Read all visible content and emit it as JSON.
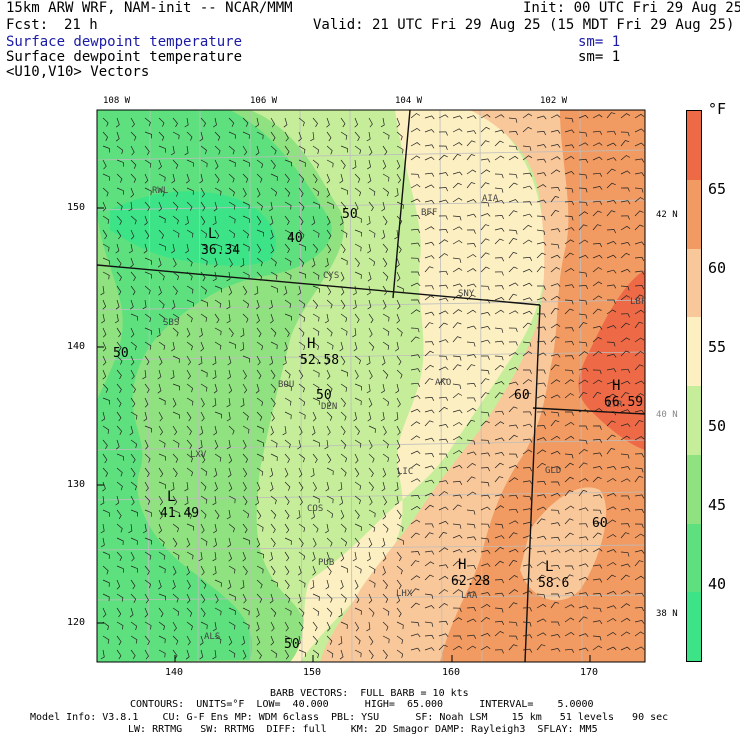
{
  "header": {
    "model": "15km ARW WRF, NAM-init -- NCAR/MMM",
    "init": "Init: 00 UTC Fri 29 Aug 25",
    "fcst_label": "Fcst:",
    "fcst_value": "21 h",
    "valid": "Valid: 21 UTC Fri 29 Aug 25 (15 MDT Fri 29 Aug 25)",
    "field1": "Surface dewpoint temperature",
    "field1_sm": "sm= 1",
    "field2": "Surface dewpoint temperature",
    "field2_sm": "sm= 1",
    "field3": "<U10,V10> Vectors"
  },
  "axes": {
    "top_lon": [
      "108 W",
      "106 W",
      "104 W",
      "102 W"
    ],
    "left_y": [
      "150",
      "140",
      "130",
      "120"
    ],
    "bottom_x": [
      "140",
      "150",
      "160",
      "170"
    ],
    "right_lat": [
      "42 N",
      "40 N",
      "38 N"
    ]
  },
  "colorbar": {
    "unit": "°F",
    "labels": [
      "65",
      "60",
      "55",
      "50",
      "45",
      "40"
    ],
    "colors": [
      "#ee6a47",
      "#f19a61",
      "#f8c79a",
      "#fcefc2",
      "#c6ee9a",
      "#8fe27f",
      "#5ee07e",
      "#3ce487"
    ]
  },
  "map": {
    "stations": [
      "RWL",
      "BFF",
      "AIA",
      "CYS",
      "SNY",
      "SBS",
      "BOU",
      "DEN",
      "AKO",
      "LXV",
      "COS",
      "LIC",
      "GLD",
      "PUB",
      "LAA",
      "LHX",
      "ALS",
      "LBF",
      "ITR"
    ],
    "extrema": [
      {
        "label": "L",
        "value": "36.34"
      },
      {
        "label": "H",
        "value": "52.58"
      },
      {
        "label": "H",
        "value": "66.59"
      },
      {
        "label": "L",
        "value": "41.49"
      },
      {
        "label": "H",
        "value": "62.28"
      },
      {
        "label": "L",
        "value": "58.6"
      }
    ],
    "contour_labels": [
      "50",
      "40",
      "50",
      "50",
      "60",
      "60",
      "50"
    ]
  },
  "footer": {
    "barb": "BARB VECTORS:  FULL BARB = 10 kts",
    "contours": "CONTOURS:  UNITS=°F  LOW=  40.000      HIGH=  65.000      INTERVAL=    5.0000",
    "model_info": "Model Info: V3.8.1    CU: G-F Ens MP: WDM 6class  PBL: YSU      SF: Noah LSM    15 km   51 levels   90 sec",
    "model_info2": "LW: RRTMG   SW: RRTMG  DIFF: full    KM: 2D Smagor DAMP: Rayleigh3  SFLAY: MM5"
  }
}
